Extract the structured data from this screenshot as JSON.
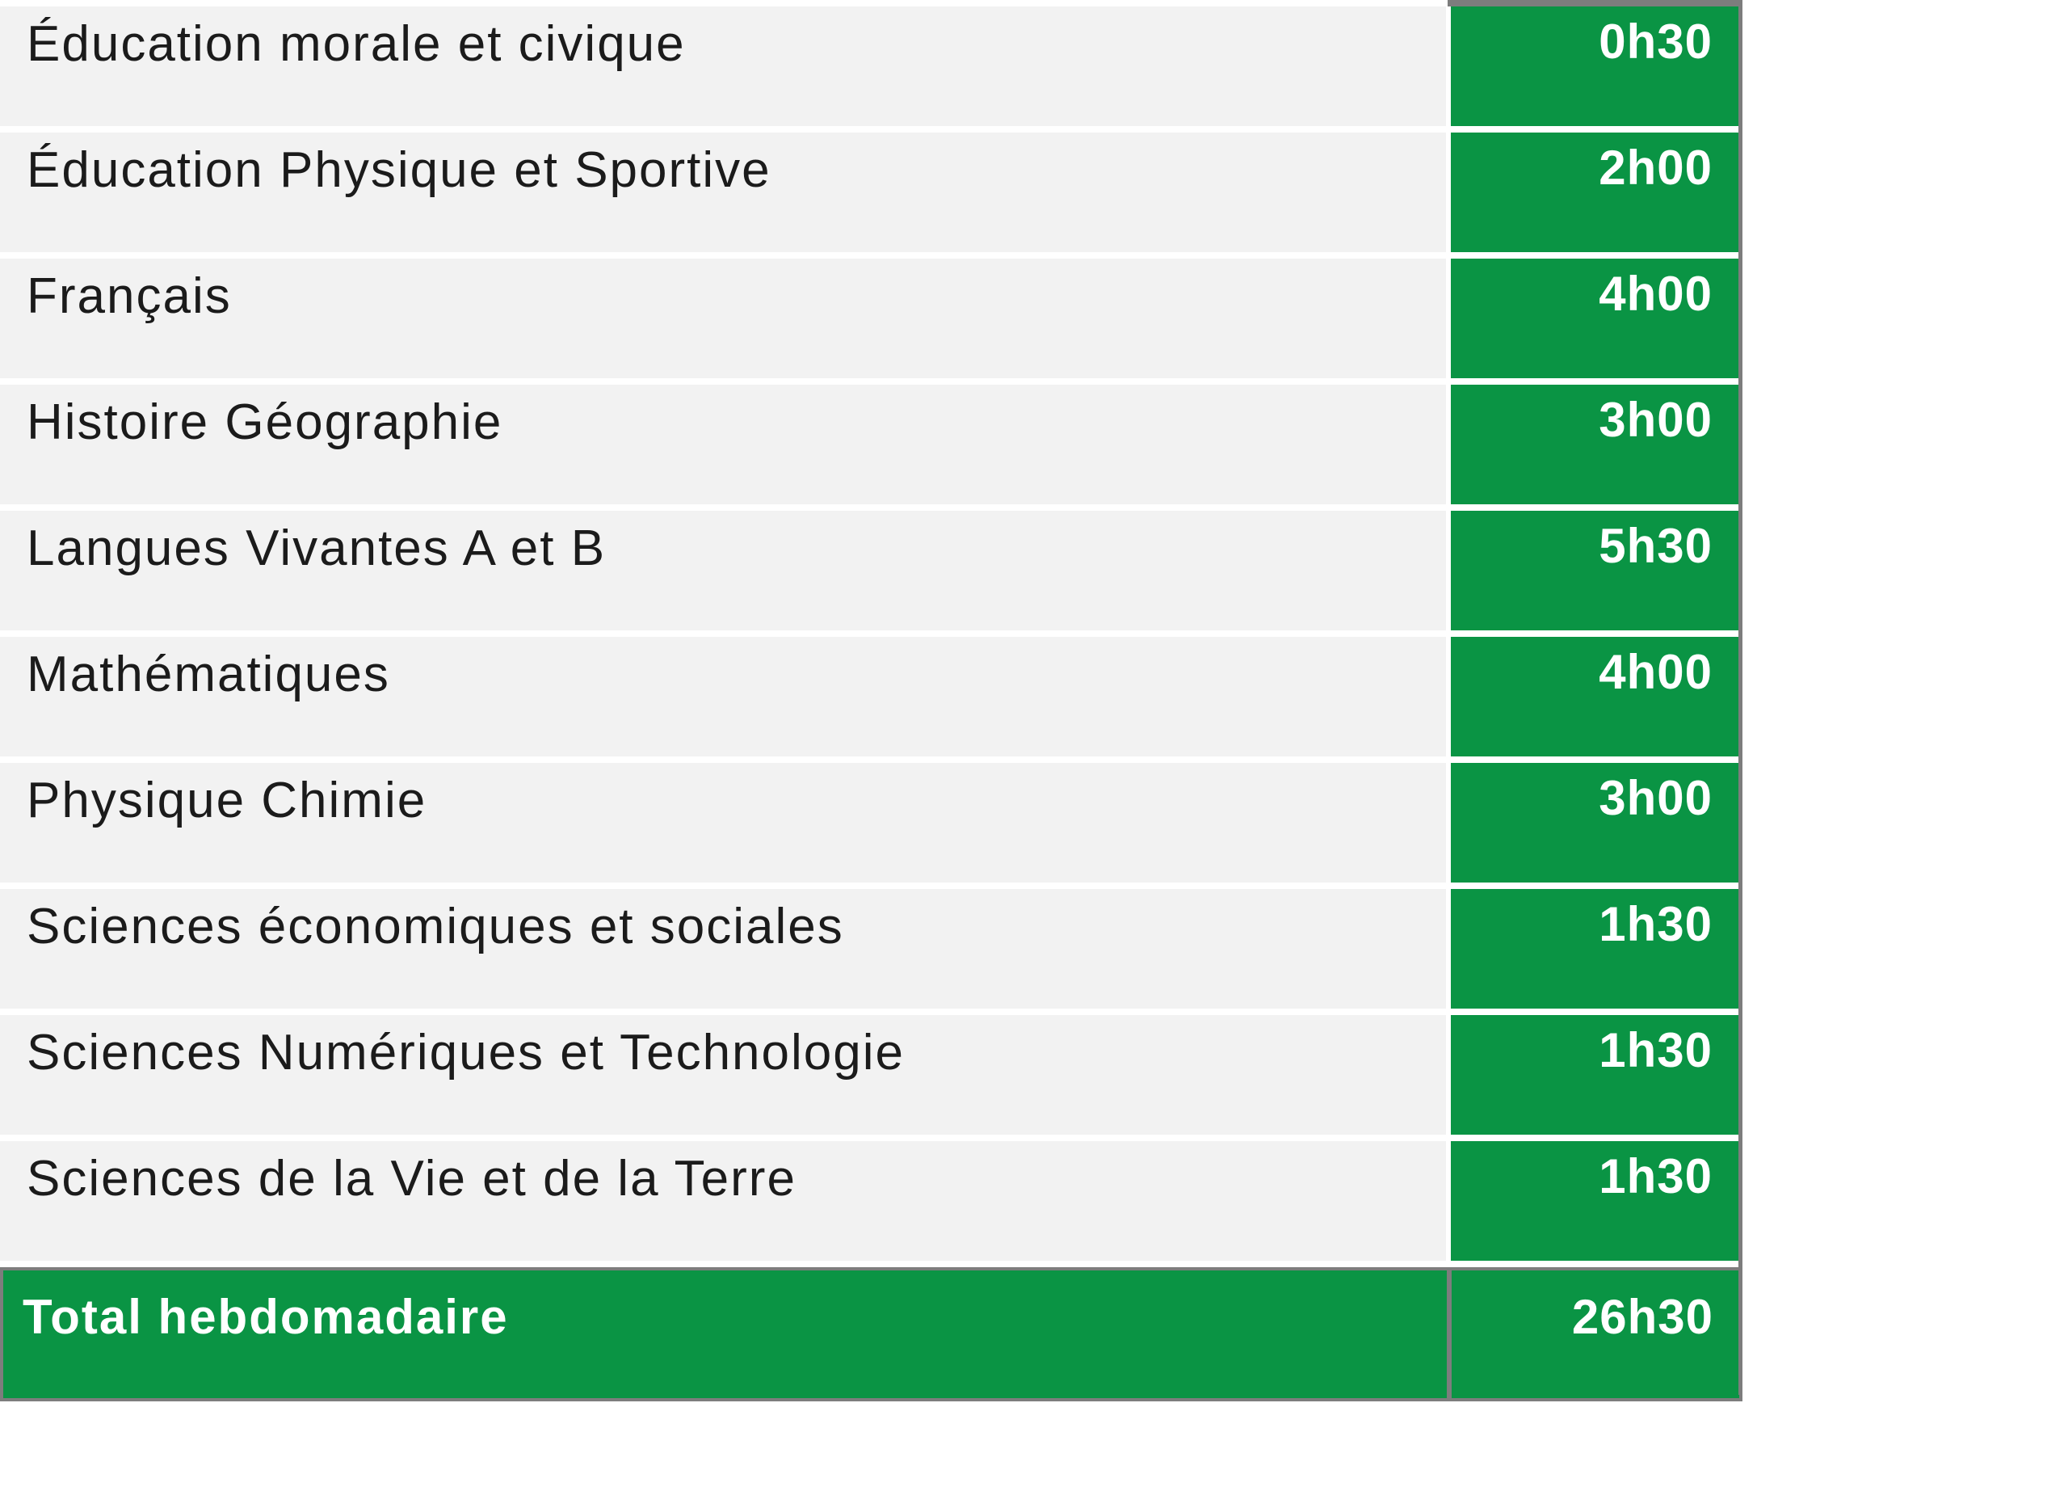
{
  "chart_data": {
    "type": "table",
    "rows": [
      {
        "subject": "Éducation morale et civique",
        "hours": "0h30"
      },
      {
        "subject": "Éducation Physique et Sportive",
        "hours": "2h00"
      },
      {
        "subject": "Français",
        "hours": "4h00"
      },
      {
        "subject": "Histoire Géographie",
        "hours": "3h00"
      },
      {
        "subject": "Langues Vivantes A et B",
        "hours": "5h30"
      },
      {
        "subject": "Mathématiques",
        "hours": "4h00"
      },
      {
        "subject": "Physique Chimie",
        "hours": "3h00"
      },
      {
        "subject": "Sciences économiques et sociales",
        "hours": "1h30"
      },
      {
        "subject": "Sciences Numériques et Technologie",
        "hours": "1h30"
      },
      {
        "subject": "Sciences de la Vie et de la Terre",
        "hours": "1h30"
      }
    ],
    "total": {
      "label": "Total hebdomadaire",
      "hours": "26h30"
    }
  },
  "colors": {
    "accent_green": "#0a9444",
    "row_background": "#f2f2f2",
    "border_gray": "#7d7d7d",
    "subject_text": "#1b1b1b",
    "hours_text": "#ffffff"
  }
}
